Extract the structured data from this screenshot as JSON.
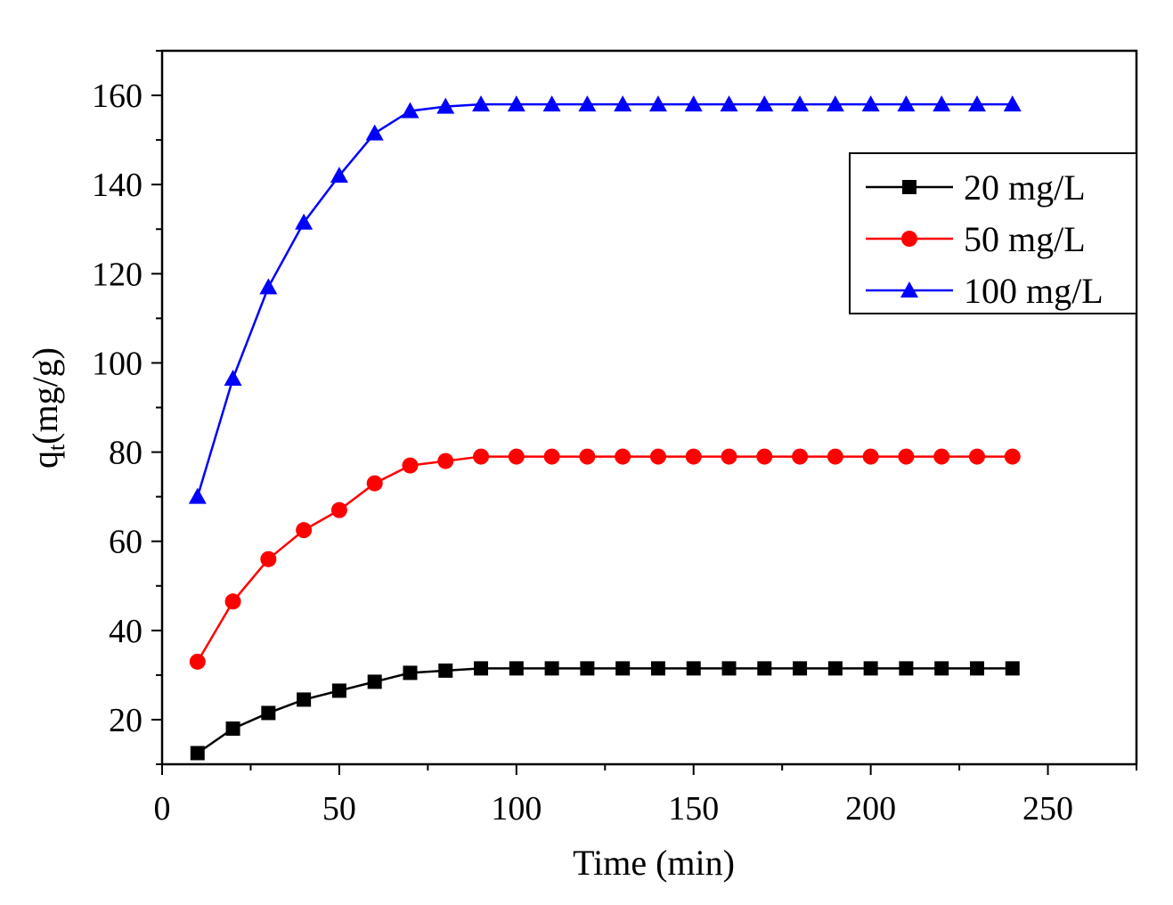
{
  "chart_data": {
    "type": "line",
    "title": "",
    "xlabel": "Time (min)",
    "ylabel_main": "q",
    "ylabel_sub": "t",
    "ylabel_unit": "(mg/g)",
    "xlim": [
      0,
      275
    ],
    "ylim": [
      10,
      170
    ],
    "xticks": [
      0,
      50,
      100,
      150,
      200,
      250
    ],
    "yticks": [
      20,
      40,
      60,
      80,
      100,
      120,
      140,
      160
    ],
    "grid": false,
    "legend_position": "top-right",
    "x": [
      10,
      20,
      30,
      40,
      50,
      60,
      70,
      80,
      90,
      100,
      110,
      120,
      130,
      140,
      150,
      160,
      170,
      180,
      190,
      200,
      210,
      220,
      230,
      240
    ],
    "series": [
      {
        "name": "20 mg/L",
        "color": "#000000",
        "marker": "square",
        "values": [
          12.5,
          18,
          21.5,
          24.5,
          26.5,
          28.5,
          30.5,
          31,
          31.5,
          31.5,
          31.5,
          31.5,
          31.5,
          31.5,
          31.5,
          31.5,
          31.5,
          31.5,
          31.5,
          31.5,
          31.5,
          31.5,
          31.5,
          31.5
        ]
      },
      {
        "name": "50 mg/L",
        "color": "#ff0000",
        "marker": "circle",
        "values": [
          33,
          46.5,
          56,
          62.5,
          67,
          73,
          77,
          78,
          79,
          79,
          79,
          79,
          79,
          79,
          79,
          79,
          79,
          79,
          79,
          79,
          79,
          79,
          79,
          79
        ]
      },
      {
        "name": "100 mg/L",
        "color": "#0000ff",
        "marker": "triangle",
        "values": [
          70,
          96.5,
          117,
          131.5,
          142,
          151.5,
          156.5,
          157.5,
          158,
          158,
          158,
          158,
          158,
          158,
          158,
          158,
          158,
          158,
          158,
          158,
          158,
          158,
          158,
          158
        ]
      }
    ]
  }
}
